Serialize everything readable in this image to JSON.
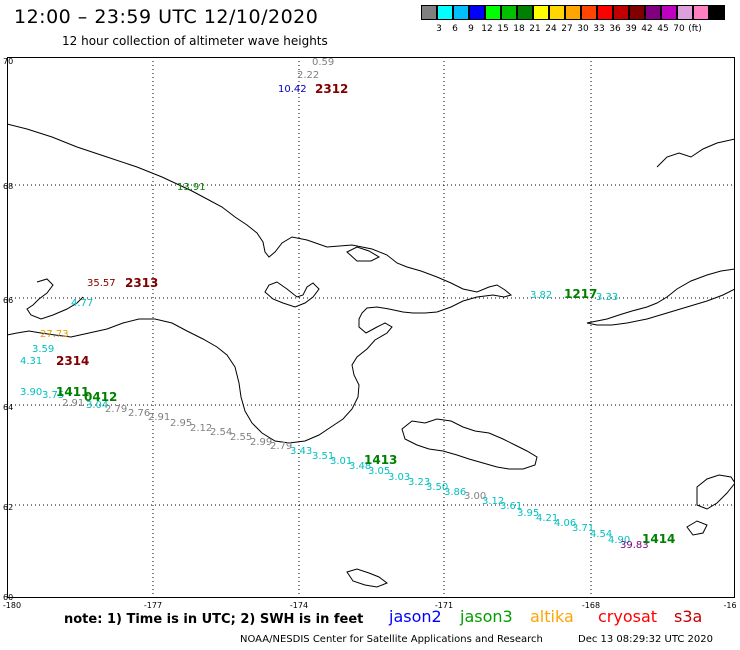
{
  "header": {
    "title": "12:00 – 23:59 UTC 12/10/2020",
    "subtitle": "12 hour collection of altimeter wave heights"
  },
  "legend": {
    "unit": "(ft)",
    "colors": [
      "#808080",
      "#00ffff",
      "#00bfff",
      "#0000ff",
      "#00ff00",
      "#00c000",
      "#008000",
      "#ffff00",
      "#ffd700",
      "#ffa500",
      "#ff4500",
      "#ff0000",
      "#c00000",
      "#800000",
      "#800080",
      "#c000c0",
      "#dda0dd",
      "#ff80c0",
      "#000000"
    ],
    "ticks": [
      "3",
      "6",
      "9",
      "12",
      "15",
      "18",
      "21",
      "24",
      "27",
      "30",
      "33",
      "36",
      "39",
      "42",
      "45",
      "70"
    ]
  },
  "axes": {
    "lat_labels": [
      "70",
      "68",
      "66",
      "64",
      "62",
      "60"
    ],
    "lon_labels": [
      "-180",
      "-177",
      "-174",
      "-171",
      "-168",
      "-16"
    ]
  },
  "observations": [
    {
      "text": "0.59",
      "color": "#808080"
    },
    {
      "text": "2.22",
      "color": "#808080"
    },
    {
      "text": "10.42",
      "color": "#0000c0"
    },
    {
      "text": "13.91",
      "color": "#008000"
    },
    {
      "text": "35.57",
      "color": "#800000"
    },
    {
      "text": "4.77",
      "color": "#00c0c0"
    },
    {
      "text": "27.73",
      "color": "#e0a000"
    },
    {
      "text": "3.59",
      "color": "#00c0c0"
    },
    {
      "text": "4.31",
      "color": "#00c0c0"
    },
    {
      "text": "3.90",
      "color": "#00c0c0"
    },
    {
      "text": "3.75",
      "color": "#00c0c0"
    },
    {
      "text": "2.91",
      "color": "#808080"
    },
    {
      "text": "3.04",
      "color": "#00c0c0"
    },
    {
      "text": "2.79",
      "color": "#808080"
    },
    {
      "text": "2.76",
      "color": "#808080"
    },
    {
      "text": "2.91",
      "color": "#808080"
    },
    {
      "text": "2.95",
      "color": "#808080"
    },
    {
      "text": "2.12",
      "color": "#808080"
    },
    {
      "text": "2.54",
      "color": "#808080"
    },
    {
      "text": "2.55",
      "color": "#808080"
    },
    {
      "text": "2.99",
      "color": "#808080"
    },
    {
      "text": "2.79",
      "color": "#808080"
    },
    {
      "text": "3.43",
      "color": "#00c0c0"
    },
    {
      "text": "3.51",
      "color": "#00c0c0"
    },
    {
      "text": "3.01",
      "color": "#00c0c0"
    },
    {
      "text": "3.48",
      "color": "#00c0c0"
    },
    {
      "text": "3.05",
      "color": "#00c0c0"
    },
    {
      "text": "3.03",
      "color": "#00c0c0"
    },
    {
      "text": "3.23",
      "color": "#00c0c0"
    },
    {
      "text": "3.50",
      "color": "#00c0c0"
    },
    {
      "text": "3.86",
      "color": "#00c0c0"
    },
    {
      "text": "3.00",
      "color": "#808080"
    },
    {
      "text": "3.12",
      "color": "#00c0c0"
    },
    {
      "text": "3.61",
      "color": "#00c0c0"
    },
    {
      "text": "3.95",
      "color": "#00c0c0"
    },
    {
      "text": "4.21",
      "color": "#00c0c0"
    },
    {
      "text": "4.06",
      "color": "#00c0c0"
    },
    {
      "text": "3.71",
      "color": "#00c0c0"
    },
    {
      "text": "4.54",
      "color": "#00c0c0"
    },
    {
      "text": "4.90",
      "color": "#00c0c0"
    },
    {
      "text": "39.83",
      "color": "#800080"
    },
    {
      "text": "3.82",
      "color": "#00c0c0"
    },
    {
      "text": "3.33",
      "color": "#00c0c0"
    }
  ],
  "passes": [
    {
      "text": "2312",
      "color": "#800000"
    },
    {
      "text": "2313",
      "color": "#800000"
    },
    {
      "text": "2314",
      "color": "#800000"
    },
    {
      "text": "1411",
      "color": "#008000"
    },
    {
      "text": "0412",
      "color": "#008000"
    },
    {
      "text": "1413",
      "color": "#008000"
    },
    {
      "text": "1414",
      "color": "#008000"
    },
    {
      "text": "1217",
      "color": "#008000"
    }
  ],
  "note": "note:  1) Time is in UTC;  2) SWH is in feet",
  "satellites": [
    {
      "name": "jason2",
      "color": "#0000ff"
    },
    {
      "name": "jason3",
      "color": "#00a000"
    },
    {
      "name": "altika",
      "color": "#ffa500"
    },
    {
      "name": "cryosat",
      "color": "#ff0000"
    },
    {
      "name": "s3a",
      "color": "#c00000"
    }
  ],
  "footer": {
    "credit": "NOAA/NESDIS Center for Satellite Applications and Research",
    "timestamp": "Dec 13 08:29:32 UTC 2020"
  }
}
